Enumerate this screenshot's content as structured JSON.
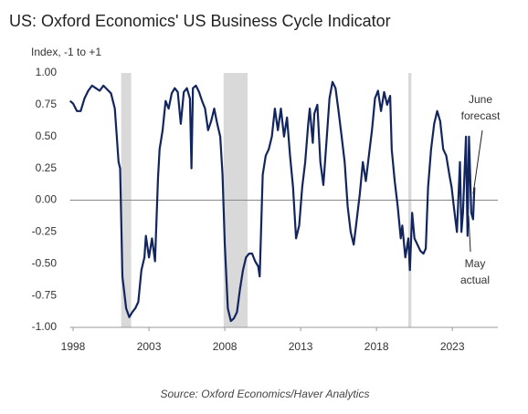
{
  "chart_data": {
    "type": "line",
    "title": "US: Oxford Economics' US Business Cycle Indicator",
    "y_label": "Index, -1 to +1",
    "source": "Source: Oxford Economics/Haver Analytics",
    "annotations": [
      "June\nforecast",
      "May\nactual"
    ],
    "xlim": [
      1997.8,
      2026
    ],
    "xticks": [
      1998,
      2003,
      2008,
      2013,
      2018,
      2023
    ],
    "ylim": [
      -1,
      1
    ],
    "yticks": [
      {
        "value": 1,
        "label": "1.00"
      },
      {
        "value": 0.75,
        "label": "0.75"
      },
      {
        "value": 0.5,
        "label": "0.50"
      },
      {
        "value": 0.25,
        "label": "0.25"
      },
      {
        "value": 0,
        "label": "0.00"
      },
      {
        "value": -0.25,
        "label": "-0.25"
      },
      {
        "value": -0.5,
        "label": "-0.50"
      },
      {
        "value": -0.75,
        "label": "-0.75"
      },
      {
        "value": -1,
        "label": "-1.00"
      }
    ],
    "hline": 0,
    "recessions": [
      [
        2001.17,
        2001.83
      ],
      [
        2007.92,
        2009.5
      ],
      [
        2020.1,
        2020.3
      ]
    ],
    "recession_color": "#d9d9d9",
    "series": [
      {
        "color": "#13255e",
        "x": [
          1997.8,
          1998.0,
          1998.25,
          1998.5,
          1998.75,
          1999.0,
          1999.25,
          1999.5,
          1999.75,
          2000.0,
          2000.25,
          2000.5,
          2000.75,
          2001.0,
          2001.1,
          2001.25,
          2001.5,
          2001.7,
          2001.9,
          2002.1,
          2002.3,
          2002.5,
          2002.7,
          2002.8,
          2003.0,
          2003.2,
          2003.4,
          2003.6,
          2003.7,
          2003.9,
          2004.1,
          2004.3,
          2004.5,
          2004.7,
          2004.9,
          2005.1,
          2005.3,
          2005.5,
          2005.7,
          2005.8,
          2005.9,
          2006.1,
          2006.3,
          2006.5,
          2006.7,
          2006.9,
          2007.1,
          2007.3,
          2007.5,
          2007.7,
          2007.85,
          2008.0,
          2008.2,
          2008.4,
          2008.6,
          2008.8,
          2009.0,
          2009.2,
          2009.4,
          2009.6,
          2009.8,
          2010.0,
          2010.2,
          2010.3,
          2010.5,
          2010.7,
          2010.9,
          2011.1,
          2011.3,
          2011.5,
          2011.7,
          2011.9,
          2012.1,
          2012.3,
          2012.5,
          2012.7,
          2012.9,
          2013.1,
          2013.3,
          2013.5,
          2013.6,
          2013.8,
          2013.9,
          2014.1,
          2014.3,
          2014.5,
          2014.7,
          2014.9,
          2015.1,
          2015.3,
          2015.5,
          2015.7,
          2015.9,
          2016.1,
          2016.3,
          2016.5,
          2016.7,
          2016.9,
          2017.1,
          2017.3,
          2017.5,
          2017.7,
          2017.9,
          2018.1,
          2018.3,
          2018.5,
          2018.7,
          2018.9,
          2019.0,
          2019.2,
          2019.4,
          2019.6,
          2019.7,
          2019.9,
          2020.1,
          2020.2,
          2020.35,
          2020.5,
          2020.7,
          2020.9,
          2021.1,
          2021.25,
          2021.4,
          2021.6,
          2021.8,
          2022.0,
          2022.2,
          2022.4,
          2022.6,
          2022.8,
          2022.95,
          2023.1,
          2023.3,
          2023.5,
          2023.6,
          2023.7,
          2023.9,
          2024.0,
          2024.1,
          2024.25,
          2024.37,
          2024.45
        ],
        "values": [
          0.78,
          0.76,
          0.7,
          0.7,
          0.8,
          0.86,
          0.9,
          0.88,
          0.86,
          0.9,
          0.87,
          0.84,
          0.72,
          0.3,
          0.25,
          -0.6,
          -0.85,
          -0.92,
          -0.88,
          -0.85,
          -0.8,
          -0.55,
          -0.45,
          -0.28,
          -0.45,
          -0.3,
          -0.48,
          0.18,
          0.4,
          0.55,
          0.78,
          0.72,
          0.84,
          0.88,
          0.85,
          0.6,
          0.85,
          0.88,
          0.8,
          0.25,
          0.88,
          0.9,
          0.85,
          0.78,
          0.72,
          0.55,
          0.62,
          0.72,
          0.6,
          0.5,
          0.2,
          -0.35,
          -0.85,
          -0.95,
          -0.93,
          -0.88,
          -0.7,
          -0.55,
          -0.45,
          -0.42,
          -0.42,
          -0.48,
          -0.52,
          -0.6,
          0.2,
          0.35,
          0.4,
          0.5,
          0.72,
          0.55,
          0.72,
          0.5,
          0.65,
          0.35,
          0.1,
          -0.3,
          -0.2,
          0.1,
          0.3,
          0.6,
          0.72,
          0.45,
          0.68,
          0.75,
          0.3,
          0.12,
          0.45,
          0.8,
          0.93,
          0.88,
          0.7,
          0.5,
          0.3,
          -0.05,
          -0.25,
          -0.35,
          -0.15,
          0.05,
          0.3,
          0.15,
          0.35,
          0.55,
          0.8,
          0.86,
          0.7,
          0.85,
          0.75,
          0.82,
          0.4,
          0.15,
          -0.05,
          -0.3,
          -0.2,
          -0.45,
          -0.3,
          -0.55,
          -0.1,
          -0.3,
          -0.35,
          -0.4,
          -0.42,
          -0.38,
          0.1,
          0.4,
          0.6,
          0.7,
          0.62,
          0.4,
          0.35,
          0.2,
          0.1,
          -0.05,
          -0.25,
          0.3,
          -0.25,
          -0.1,
          0.5,
          -0.28,
          0.5,
          -0.1,
          -0.15,
          0.1
        ]
      }
    ]
  }
}
